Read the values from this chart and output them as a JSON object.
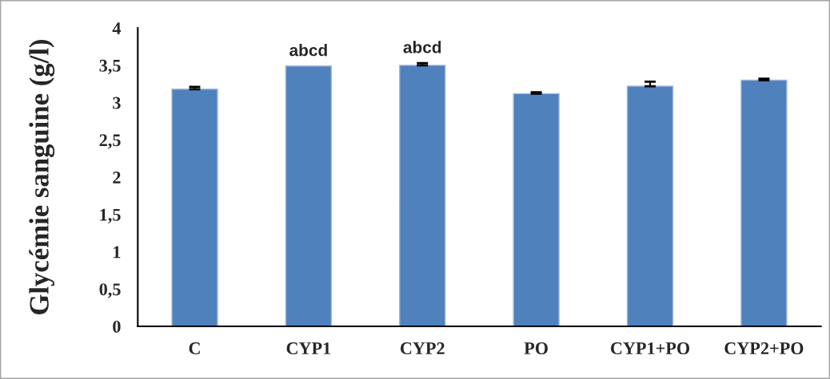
{
  "chart_data": {
    "type": "bar",
    "ylabel": "Glycémie sanguine (g/l)",
    "categories": [
      "C",
      "CYP1",
      "CYP2",
      "PO",
      "CYP1+PO",
      "CYP2+PO"
    ],
    "values": [
      3.18,
      3.49,
      3.5,
      3.12,
      3.22,
      3.3
    ],
    "errors": [
      [
        3.18,
        3.21
      ],
      null,
      [
        3.5,
        3.53
      ],
      [
        3.12,
        3.14
      ],
      [
        3.22,
        3.28
      ],
      [
        3.3,
        3.32
      ]
    ],
    "color": "#4f81bd",
    "ylim": [
      0,
      4
    ],
    "yticks": [
      0,
      {
        "value": 0.5,
        "label": "0,5"
      },
      1,
      {
        "value": 1.5,
        "label": "1,5"
      },
      2,
      {
        "value": 2.5,
        "label": "2,5"
      },
      3,
      {
        "value": 3.5,
        "label": "3,5"
      },
      4
    ],
    "annotations": [
      {
        "text": "abcd",
        "x": "CYP1",
        "y": 3.49
      },
      {
        "text": "abcd",
        "x": "CYP2",
        "y": 3.53
      }
    ],
    "grid": false,
    "legend": false
  }
}
